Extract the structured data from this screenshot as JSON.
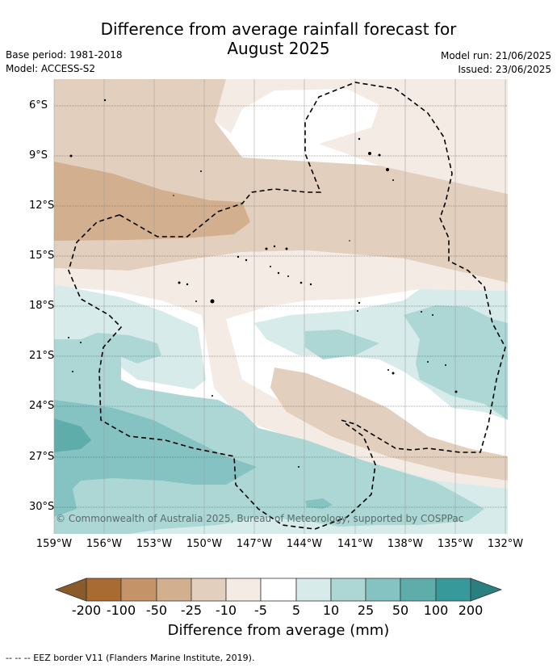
{
  "header": {
    "title_line1": "Difference from average rainfall forecast for",
    "title_line2": "August 2025",
    "base_period": "Base period: 1981-2018",
    "model": "Model: ACCESS-S2",
    "model_run": "Model run: 21/06/2025",
    "issued": "Issued: 23/06/2025"
  },
  "map": {
    "lat_labels": [
      "6°S",
      "9°S",
      "12°S",
      "15°S",
      "18°S",
      "21°S",
      "24°S",
      "27°S",
      "30°S"
    ],
    "lon_labels": [
      "159°W",
      "156°W",
      "153°W",
      "150°W",
      "147°W",
      "144°W",
      "141°W",
      "138°W",
      "135°W",
      "132°W"
    ],
    "copyright": "© Commonwealth of Australia 2025, Bureau of Meteorology, supported by COSPPac",
    "colors": {
      "brown_-200": "#a86c33",
      "brown_-100": "#c49468",
      "brown_-50": "#d2b08f",
      "brown_-25": "#e3cfbd",
      "brown_-10": "#f3ebe4",
      "white": "#ffffff",
      "teal_10": "#d6ebea",
      "teal_25": "#acd7d5",
      "teal_50": "#84c3c1",
      "teal_100": "#5eadab",
      "teal_200": "#38999a"
    }
  },
  "colorbar": {
    "labels": [
      "-200",
      "-100",
      "-50",
      "-25",
      "-10",
      "-5",
      "5",
      "10",
      "25",
      "50",
      "100",
      "200"
    ],
    "title": "Difference from average (mm)"
  },
  "footer": {
    "legend_text": "--  --  -- EEZ border V11 (Flanders Marine Institute, 2019)."
  }
}
